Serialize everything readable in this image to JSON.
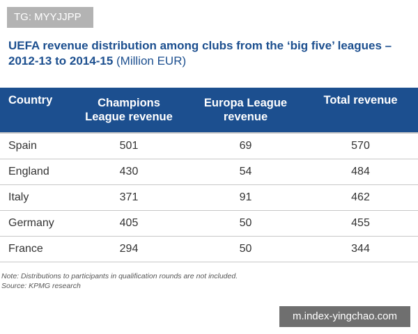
{
  "tag_label": "TG: MYYJJPP",
  "title": {
    "main": "UEFA revenue distribution among clubs from the ‘big five’ leagues – 2012-13 to 2014-15",
    "unit": "(Million EUR)"
  },
  "colors": {
    "header_bg": "#1c4f8f",
    "title_text": "#1c4f8f",
    "tag_bg": "#b3b3b3",
    "watermark_bg": "#6f6f6f"
  },
  "notes": {
    "line1": "Note: Distributions to participants in qualification rounds are not included.",
    "line2": "Source: KPMG research"
  },
  "watermark_text": "m.index-yingchao.com",
  "chart_data": {
    "type": "table",
    "title": "UEFA revenue distribution among clubs from the ‘big five’ leagues – 2012-13 to 2014-15 (Million EUR)",
    "columns": [
      [
        "Country"
      ],
      [
        "Champions",
        "League revenue"
      ],
      [
        "Europa League",
        "revenue"
      ],
      [
        "Total revenue"
      ]
    ],
    "rows": [
      {
        "country": "Spain",
        "champions_league": 501,
        "europa_league": 69,
        "total": 570
      },
      {
        "country": "England",
        "champions_league": 430,
        "europa_league": 54,
        "total": 484
      },
      {
        "country": "Italy",
        "champions_league": 371,
        "europa_league": 91,
        "total": 462
      },
      {
        "country": "Germany",
        "champions_league": 405,
        "europa_league": 50,
        "total": 455
      },
      {
        "country": "France",
        "champions_league": 294,
        "europa_league": 50,
        "total": 344
      }
    ]
  }
}
